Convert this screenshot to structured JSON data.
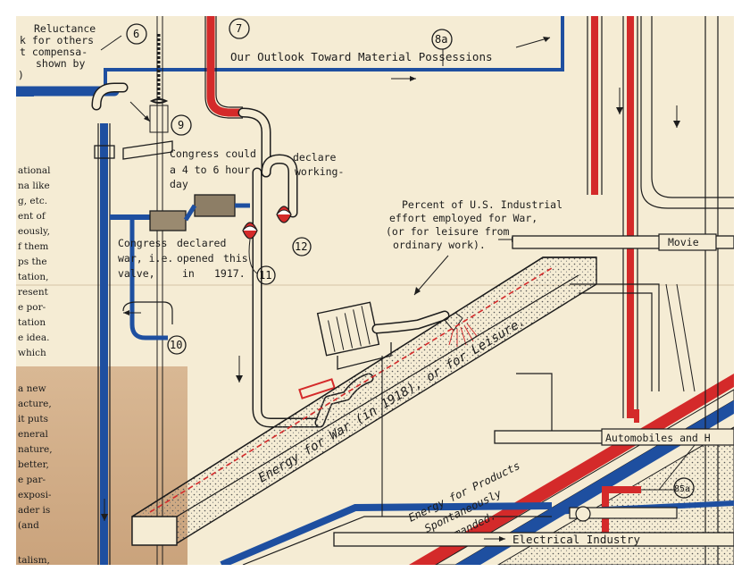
{
  "header": {
    "title": "Our Outlook Toward Material Possessions",
    "label_8a": "8a"
  },
  "top_left_note": [
    "Reluctance",
    "k for others",
    "t compensa-",
    "shown by",
    ")"
  ],
  "labels": {
    "n6": "6",
    "n7": "7",
    "n9": "9",
    "n10": "10",
    "n11": "11",
    "n12": "12",
    "n85a": "85a"
  },
  "congress_could": [
    "Congress could",
    "a 4 to 6 hour",
    "day",
    "declare",
    "working-"
  ],
  "congress_declared": [
    "Congress",
    "declared",
    "war, i.e.",
    "opened",
    "this",
    "valve,",
    "in",
    "1917."
  ],
  "percent_note": [
    "Percent of U.S. Industrial",
    "effort employed for War,",
    "(or for leisure from",
    "ordinary work)."
  ],
  "trough_text": [
    "Energy for War (in 1918), or for Leisure."
  ],
  "products_text": [
    "Energy for Products",
    "Spontaneously",
    "Demanded."
  ],
  "pipe_labels": {
    "movie": "Movie",
    "automobiles": "Automobiles and H",
    "electrical": "Electrical Industry"
  },
  "side_text": [
    "ational",
    "na like",
    "g, etc.",
    "ent of",
    "eously,",
    "f them",
    "ps the",
    "tation,",
    "resent",
    "e por-",
    "tation",
    "e idea.",
    "which",
    "a new",
    "acture,",
    "it puts",
    "eneral",
    "nature,",
    "better,",
    "e par-",
    "exposi-",
    "ader is",
    "(and",
    "talism,"
  ],
  "colors": {
    "blue": "#1e4fa0",
    "red": "#d42a2a",
    "paper": "#f5ecd4",
    "tan": "#caa37c",
    "ink": "#1d1d1d"
  }
}
